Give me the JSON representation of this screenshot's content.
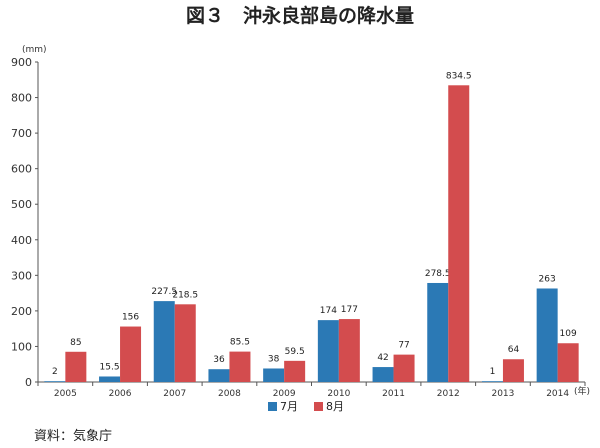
{
  "chart_data": {
    "type": "bar",
    "title": "図３　沖永良部島の降水量",
    "ylabel": "(mm)",
    "xlabel": "(年)",
    "ylim": [
      0,
      900
    ],
    "yticks": [
      0,
      100,
      200,
      300,
      400,
      500,
      600,
      700,
      800,
      900
    ],
    "grid": false,
    "legend_position": "bottom-center",
    "categories": [
      "2005",
      "2006",
      "2007",
      "2008",
      "2009",
      "2010",
      "2011",
      "2012",
      "2013",
      "2014"
    ],
    "series": [
      {
        "name": "7月",
        "color": "#2b79b5",
        "values": [
          2,
          15.5,
          227.5,
          36,
          38,
          174,
          42,
          278.5,
          1,
          263
        ],
        "labels": [
          "2",
          "15.5",
          "227.5",
          "36",
          "38",
          "174",
          "42",
          "278.5",
          "1",
          "263"
        ]
      },
      {
        "name": "8月",
        "color": "#d34c4e",
        "values": [
          85,
          156,
          218.5,
          85.5,
          59.5,
          177,
          77,
          834.5,
          64,
          109
        ],
        "labels": [
          "85",
          "156",
          "218.5",
          "85.5",
          "59.5",
          "177",
          "77",
          "834.5",
          "64",
          "109"
        ]
      }
    ]
  },
  "source": "資料：気象庁"
}
